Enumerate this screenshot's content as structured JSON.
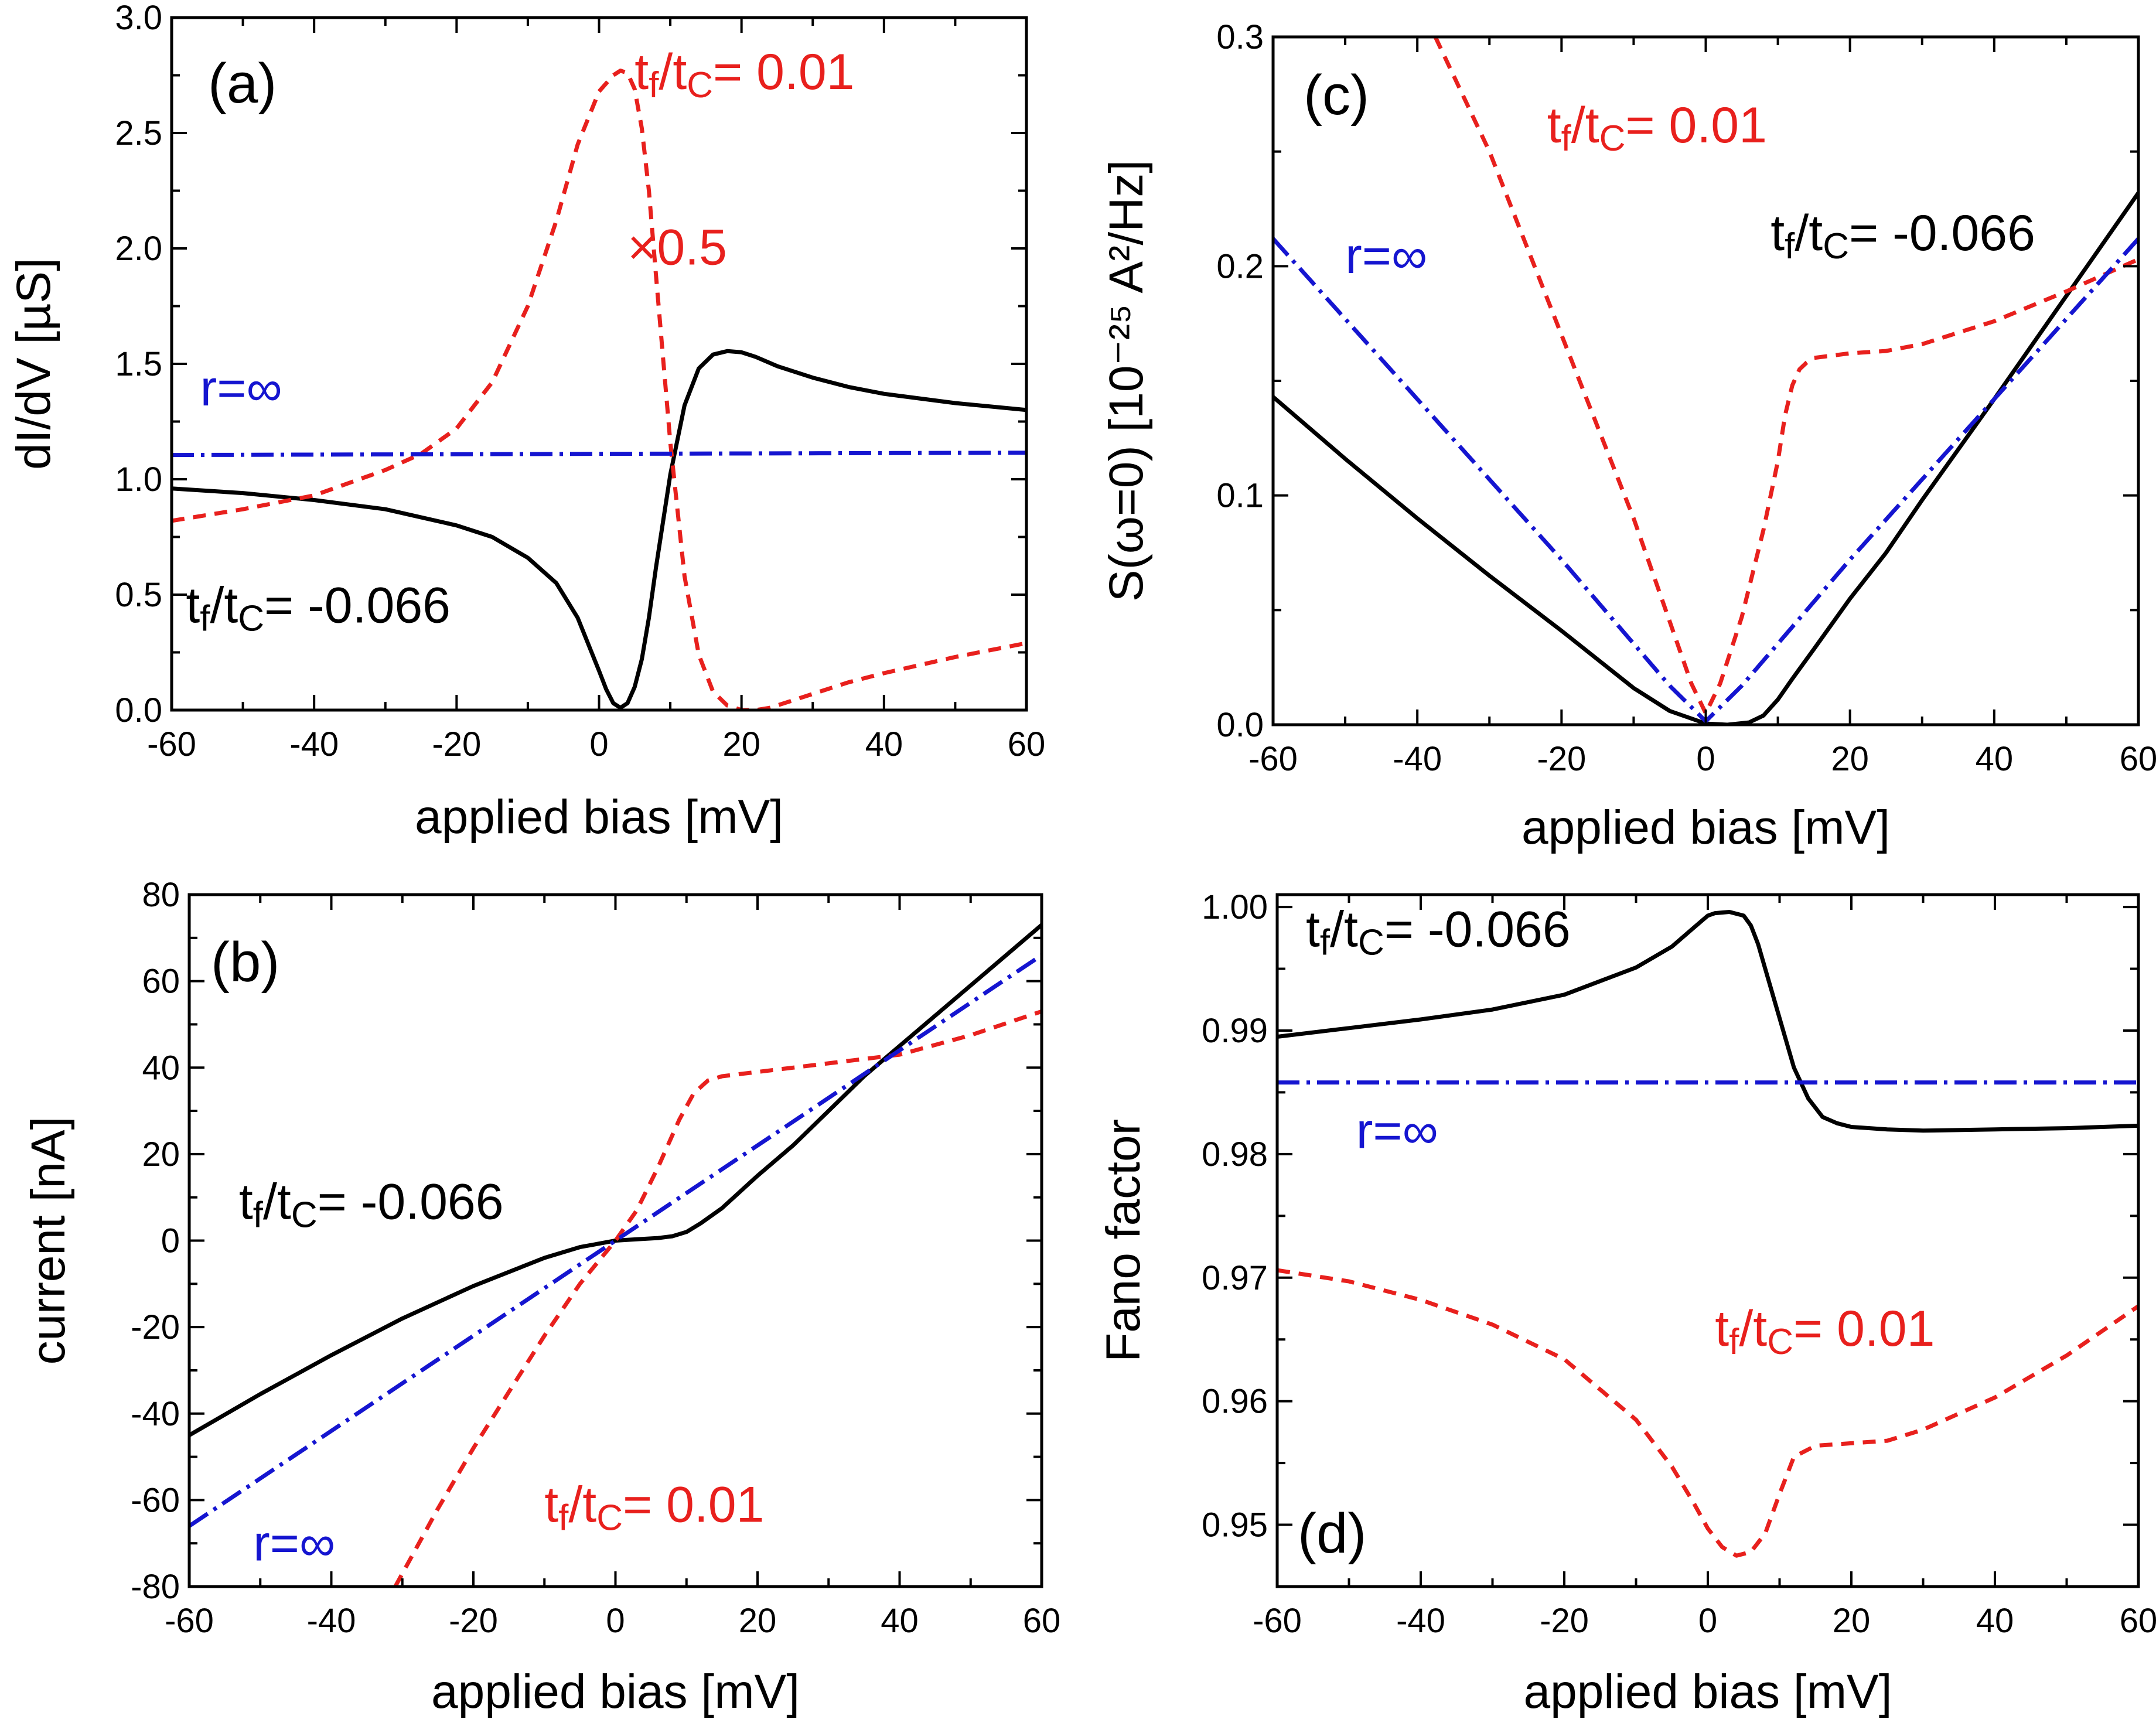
{
  "figure": {
    "description_free": true
  },
  "styles": {
    "black": {
      "color": "#000000",
      "dash": ""
    },
    "red": {
      "color": "#e8201d",
      "dash": "22,15"
    },
    "blue": {
      "color": "#1515d0",
      "dash": "38,12,6,12"
    }
  },
  "chart_data": [
    {
      "id": "a",
      "type": "line",
      "panel_label": "(a)",
      "xlabel": "applied bias [mV]",
      "ylabel": "dI/dV [µS]",
      "xlim": [
        -60,
        60
      ],
      "ylim": [
        0,
        3.0
      ],
      "xticks": [
        -60,
        -40,
        -20,
        0,
        20,
        40,
        60
      ],
      "yticks": [
        0,
        0.5,
        1.0,
        1.5,
        2.0,
        2.5,
        3.0
      ],
      "ytick_labels": [
        "0.0",
        "0.5",
        "1.0",
        "1.5",
        "2.0",
        "2.5",
        "3.0"
      ],
      "series": [
        {
          "name": "tf/tc=-0.066",
          "style": "black",
          "x": [
            -60,
            -50,
            -40,
            -30,
            -20,
            -15,
            -10,
            -6,
            -3,
            0,
            1,
            2,
            3,
            4,
            5,
            6,
            7,
            8,
            10,
            12,
            14,
            16,
            18,
            20,
            22,
            25,
            30,
            35,
            40,
            50,
            60
          ],
          "y": [
            0.96,
            0.94,
            0.91,
            0.87,
            0.8,
            0.75,
            0.66,
            0.55,
            0.4,
            0.17,
            0.09,
            0.03,
            0.01,
            0.03,
            0.1,
            0.22,
            0.4,
            0.62,
            1.02,
            1.32,
            1.48,
            1.54,
            1.555,
            1.55,
            1.53,
            1.49,
            1.44,
            1.4,
            1.37,
            1.33,
            1.3
          ]
        },
        {
          "name": "tf/tc=0.01 (x0.5)",
          "style": "red",
          "x": [
            -60,
            -50,
            -40,
            -30,
            -25,
            -20,
            -15,
            -10,
            -6,
            -3,
            0,
            2,
            3,
            4,
            5,
            6,
            7,
            8,
            10,
            12,
            14,
            16,
            18,
            20,
            22,
            24,
            26,
            30,
            35,
            40,
            50,
            60
          ],
          "y": [
            0.82,
            0.87,
            0.93,
            1.04,
            1.11,
            1.22,
            1.42,
            1.75,
            2.12,
            2.45,
            2.68,
            2.75,
            2.77,
            2.76,
            2.69,
            2.52,
            2.25,
            1.88,
            1.16,
            0.58,
            0.24,
            0.08,
            0.02,
            0.0,
            0.0,
            0.01,
            0.03,
            0.07,
            0.12,
            0.16,
            0.23,
            0.29
          ]
        },
        {
          "name": "r=∞",
          "style": "blue",
          "x": [
            -60,
            60
          ],
          "y": [
            1.105,
            1.115
          ]
        }
      ],
      "annotations": [
        {
          "text": "t",
          "sub1": "f",
          "mid": "/t",
          "sub2": "C",
          "tail": "= 0.01",
          "color": "red",
          "x": 5,
          "y": 2.69
        },
        {
          "text": "×0.5",
          "color": "red",
          "x": 4,
          "y": 1.93
        },
        {
          "text": "r=∞",
          "color": "blue",
          "x": -56,
          "y": 1.32
        },
        {
          "text": "t",
          "sub1": "f",
          "mid": "/t",
          "sub2": "C",
          "tail": "= -0.066",
          "color": "black",
          "x": -58,
          "y": 0.38
        }
      ]
    },
    {
      "id": "b",
      "type": "line",
      "panel_label": "(b)",
      "xlabel": "applied bias [mV]",
      "ylabel": "current [nA]",
      "xlim": [
        -60,
        60
      ],
      "ylim": [
        -80,
        80
      ],
      "xticks": [
        -60,
        -40,
        -20,
        0,
        20,
        40,
        60
      ],
      "yticks": [
        -80,
        -60,
        -40,
        -20,
        0,
        20,
        40,
        60,
        80
      ],
      "ytick_labels": [
        "-80",
        "-60",
        "-40",
        "-20",
        "0",
        "20",
        "40",
        "60",
        "80"
      ],
      "series": [
        {
          "name": "tf/tc=-0.066",
          "style": "black",
          "x": [
            -60,
            -50,
            -40,
            -30,
            -20,
            -10,
            -5,
            0,
            3,
            6,
            8,
            10,
            12,
            15,
            20,
            25,
            30,
            35,
            40,
            50,
            60
          ],
          "y": [
            -45,
            -35.5,
            -26.5,
            -18,
            -10.5,
            -4,
            -1.5,
            0,
            0.3,
            0.6,
            1,
            2,
            4,
            7.5,
            15,
            22,
            30,
            38,
            45,
            59,
            73
          ]
        },
        {
          "name": "tf/tc=0.01",
          "style": "red",
          "x": [
            -31,
            -25,
            -20,
            -15,
            -10,
            -5,
            0,
            3,
            6,
            9,
            11,
            13,
            15,
            20,
            25,
            30,
            35,
            40,
            50,
            60
          ],
          "y": [
            -80,
            -62,
            -48,
            -35,
            -22,
            -10,
            0,
            7,
            17,
            28,
            34,
            37,
            38,
            39,
            40,
            41,
            42,
            43,
            47.5,
            53
          ]
        },
        {
          "name": "r=∞",
          "style": "blue",
          "x": [
            -60,
            60
          ],
          "y": [
            -66,
            66
          ]
        }
      ],
      "annotations": [
        {
          "text": "t",
          "sub1": "f",
          "mid": "/t",
          "sub2": "C",
          "tail": "= -0.066",
          "color": "black",
          "x": -53,
          "y": 5
        },
        {
          "text": "r=∞",
          "color": "blue",
          "x": -51,
          "y": -74
        },
        {
          "text": "t",
          "sub1": "f",
          "mid": "/t",
          "sub2": "C",
          "tail": "= 0.01",
          "color": "red",
          "x": -10,
          "y": -65
        }
      ]
    },
    {
      "id": "c",
      "type": "line",
      "panel_label": "(c)",
      "xlabel": "applied bias [mV]",
      "ylabel": "S(ω=0) [10⁻²⁵ A²/Hz]",
      "xlim": [
        -60,
        60
      ],
      "ylim": [
        0,
        0.3
      ],
      "xticks": [
        -60,
        -40,
        -20,
        0,
        20,
        40,
        60
      ],
      "yticks": [
        0,
        0.1,
        0.2,
        0.3
      ],
      "ytick_labels": [
        "0.0",
        "0.1",
        "0.2",
        "0.3"
      ],
      "series": [
        {
          "name": "tf/tc=-0.066",
          "style": "black",
          "x": [
            -60,
            -50,
            -40,
            -30,
            -20,
            -10,
            -5,
            0,
            3,
            6,
            8,
            10,
            12,
            15,
            20,
            25,
            30,
            40,
            50,
            60
          ],
          "y": [
            0.143,
            0.116,
            0.09,
            0.065,
            0.041,
            0.016,
            0.006,
            0.0005,
            0.0,
            0.001,
            0.004,
            0.011,
            0.02,
            0.033,
            0.055,
            0.075,
            0.098,
            0.142,
            0.187,
            0.232
          ]
        },
        {
          "name": "tf/tc=0.01",
          "style": "red",
          "x": [
            -37.5,
            -30,
            -20,
            -10,
            -5,
            -2,
            0,
            2,
            5,
            8,
            10,
            11,
            12,
            13,
            14,
            15,
            20,
            25,
            30,
            40,
            50,
            60
          ],
          "y": [
            0.3,
            0.25,
            0.17,
            0.09,
            0.045,
            0.018,
            0.005,
            0.018,
            0.047,
            0.085,
            0.115,
            0.135,
            0.148,
            0.155,
            0.158,
            0.16,
            0.162,
            0.163,
            0.166,
            0.176,
            0.189,
            0.203
          ]
        },
        {
          "name": "r=∞",
          "style": "blue",
          "x": [
            -60,
            -40,
            -20,
            -5,
            0,
            5,
            20,
            40,
            60
          ],
          "y": [
            0.212,
            0.142,
            0.072,
            0.017,
            0.0015,
            0.017,
            0.072,
            0.142,
            0.212
          ]
        }
      ],
      "annotations": [
        {
          "text": "t",
          "sub1": "f",
          "mid": "/t",
          "sub2": "C",
          "tail": "= 0.01",
          "color": "red",
          "x": -22,
          "y": 0.254
        },
        {
          "text": "r=∞",
          "color": "blue",
          "x": -50,
          "y": 0.197
        },
        {
          "text": "t",
          "sub1": "f",
          "mid": "/t",
          "sub2": "C",
          "tail": "= -0.066",
          "color": "black",
          "x": 9,
          "y": 0.207
        }
      ]
    },
    {
      "id": "d",
      "type": "line",
      "panel_label": "(d)",
      "xlabel": "applied bias [mV]",
      "ylabel": "Fano factor",
      "xlim": [
        -60,
        60
      ],
      "ylim": [
        0.945,
        1.001
      ],
      "xticks": [
        -60,
        -40,
        -20,
        0,
        20,
        40,
        60
      ],
      "yticks": [
        0.95,
        0.96,
        0.97,
        0.98,
        0.99,
        1.0
      ],
      "ytick_labels": [
        "0.95",
        "0.96",
        "0.97",
        "0.98",
        "0.99",
        "1.00"
      ],
      "series": [
        {
          "name": "tf/tc=-0.066",
          "style": "black",
          "x": [
            -60,
            -50,
            -40,
            -30,
            -20,
            -10,
            -5,
            -2,
            0,
            1,
            3,
            5,
            6,
            7,
            8,
            10,
            12,
            14,
            16,
            18,
            20,
            25,
            30,
            40,
            50,
            60
          ],
          "y": [
            0.9895,
            0.9902,
            0.9909,
            0.9917,
            0.9929,
            0.9951,
            0.9968,
            0.9983,
            0.9993,
            0.9995,
            0.9996,
            0.9993,
            0.9985,
            0.997,
            0.995,
            0.991,
            0.987,
            0.9845,
            0.983,
            0.9825,
            0.9822,
            0.982,
            0.9819,
            0.982,
            0.9821,
            0.9823
          ]
        },
        {
          "name": "tf/tc=0.01",
          "style": "red",
          "x": [
            -60,
            -50,
            -40,
            -30,
            -20,
            -10,
            -5,
            -2,
            0,
            2,
            4,
            6,
            8,
            10,
            12,
            15,
            20,
            25,
            30,
            40,
            50,
            60
          ],
          "y": [
            0.9706,
            0.9697,
            0.9682,
            0.9662,
            0.9634,
            0.9585,
            0.9547,
            0.9518,
            0.9497,
            0.9482,
            0.9475,
            0.9478,
            0.9493,
            0.9525,
            0.9555,
            0.9564,
            0.9566,
            0.9568,
            0.9577,
            0.9603,
            0.9637,
            0.9677
          ]
        },
        {
          "name": "r=∞",
          "style": "blue",
          "x": [
            -60,
            60
          ],
          "y": [
            0.9858,
            0.9858
          ]
        }
      ],
      "annotations": [
        {
          "text": "t",
          "sub1": "f",
          "mid": "/t",
          "sub2": "C",
          "tail": "= -0.066",
          "color": "black",
          "x": -56,
          "y": 0.9968
        },
        {
          "text": "r=∞",
          "color": "blue",
          "x": -49,
          "y": 0.9805
        },
        {
          "text": "t",
          "sub1": "f",
          "mid": "/t",
          "sub2": "C",
          "tail": "= 0.01",
          "color": "red",
          "x": 1,
          "y": 0.9645
        }
      ]
    }
  ]
}
